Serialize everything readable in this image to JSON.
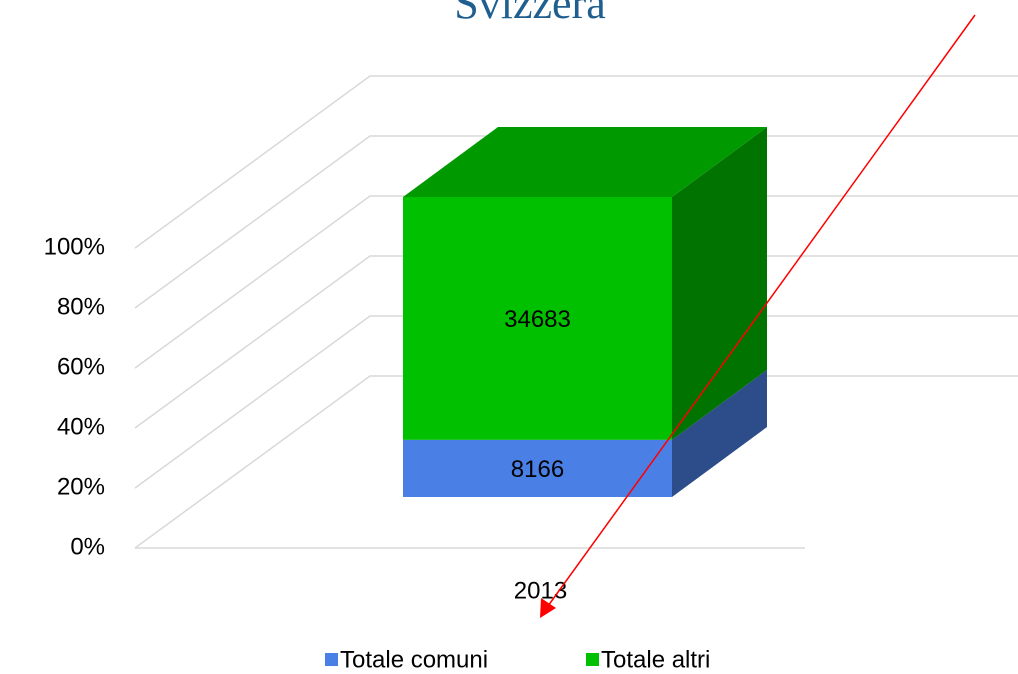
{
  "chart_data": {
    "type": "stacked_percent_bar_3d",
    "title": "Svizzera",
    "categories": [
      "2013"
    ],
    "series": [
      {
        "name": "Totale comuni",
        "color": "#4a7fe6",
        "values": [
          8166
        ]
      },
      {
        "name": "Totale altri",
        "color": "#00c000",
        "values": [
          34683
        ]
      }
    ],
    "ylim": [
      0,
      100
    ],
    "yticks": [
      {
        "value": 0,
        "label": "0%"
      },
      {
        "value": 20,
        "label": "20%"
      },
      {
        "value": 40,
        "label": "40%"
      },
      {
        "value": 60,
        "label": "60%"
      },
      {
        "value": 80,
        "label": "80%"
      },
      {
        "value": 100,
        "label": "100%"
      }
    ],
    "grid": true,
    "legend": "bottom"
  }
}
